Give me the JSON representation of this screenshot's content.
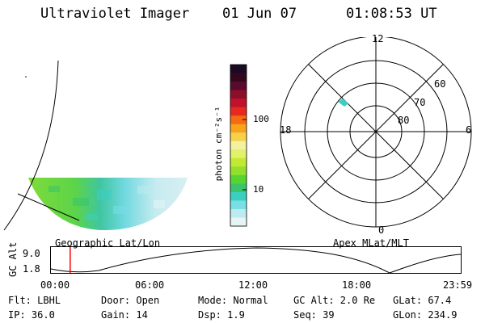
{
  "header": {
    "instrument": "Ultraviolet Imager",
    "date": "01 Jun 07",
    "time": "01:08:53 UT"
  },
  "map_panel": {
    "label": "Geographic Lat/Lon"
  },
  "colorbar": {
    "unit_label": "photon cm⁻²s⁻¹",
    "ticks": [
      "100",
      "10"
    ],
    "colors": [
      "#1a0a24",
      "#33081f",
      "#5a0a2c",
      "#8c0f2a",
      "#c0122a",
      "#e62a1e",
      "#f56a12",
      "#f9a21c",
      "#f6d24a",
      "#f3f0a0",
      "#e2f06a",
      "#c3ea33",
      "#92e02c",
      "#58d430",
      "#3bc46a",
      "#3bcfc1",
      "#78dfe6",
      "#bdecef",
      "#e6f4f6"
    ]
  },
  "polar_plot": {
    "label": "Apex MLat/MLT",
    "mlt_labels": {
      "top": "12",
      "left": "18",
      "right": "6",
      "bottom": "0"
    },
    "lat_labels": [
      "60",
      "70",
      "80"
    ]
  },
  "timeline": {
    "ylabel": "GC Alt",
    "y_ticks": [
      "9.0",
      "1.8"
    ],
    "x_ticks": [
      "00:00",
      "06:00",
      "12:00",
      "18:00",
      "23:59"
    ],
    "current_marker_fraction": 0.047
  },
  "info": {
    "row1": [
      "Flt: LBHL",
      "Door: Open",
      "Mode: Normal",
      "GC Alt: 2.0 Re",
      "GLat:  67.4"
    ],
    "row2": [
      "IP: 36.0",
      "Gain: 14",
      "Dsp:    1.9",
      "Seq: 39",
      "GLon: 234.9"
    ]
  }
}
